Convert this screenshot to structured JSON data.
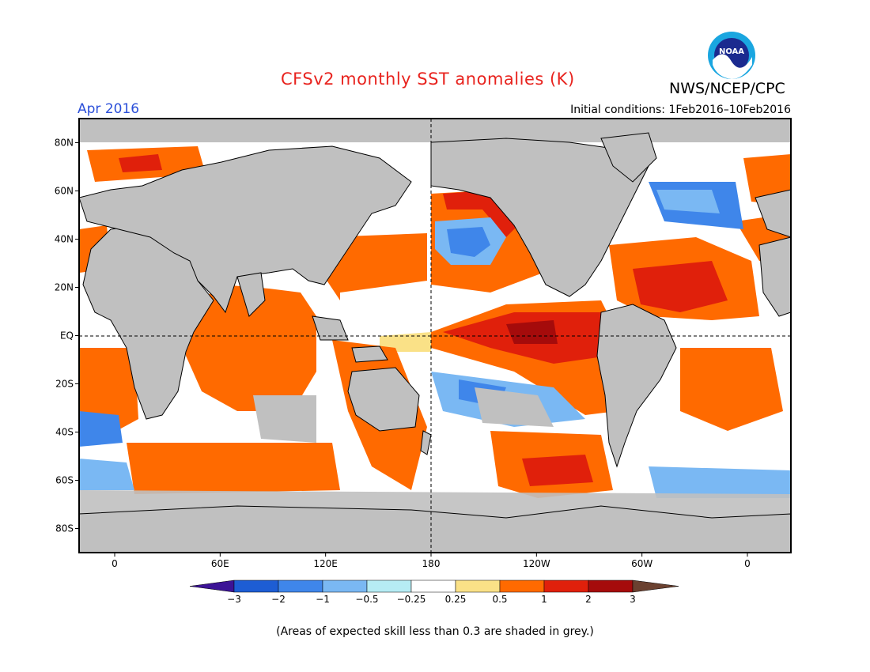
{
  "header": {
    "title": "CFSv2 monthly SST anomalies (K)",
    "org": "NWS/NCEP/CPC",
    "logo_text": "NOAA",
    "month": "Apr 2016",
    "initial_conditions": "Initial conditions: 1Feb2016–10Feb2016"
  },
  "map": {
    "lat_labels": [
      "80N",
      "60N",
      "40N",
      "20N",
      "EQ",
      "20S",
      "40S",
      "60S",
      "80S"
    ],
    "lon_labels": [
      "0",
      "60E",
      "120E",
      "180",
      "120W",
      "60W",
      "0"
    ],
    "land_color": "#c0c0c0",
    "skill_mask_color": "#c0c0c0"
  },
  "legend": {
    "tick_labels": [
      "−3",
      "−2",
      "−1",
      "−0.5",
      "−0.25",
      "0.25",
      "0.5",
      "1",
      "2",
      "3"
    ],
    "colors": [
      "#3c1396",
      "#1d5dd4",
      "#3f86ea",
      "#7ab8f3",
      "#b6ecf4",
      "#ffffff",
      "#fae187",
      "#ff6a00",
      "#e0200b",
      "#a50b0b",
      "#6b4130"
    ]
  },
  "footnote": "(Areas of expected skill less than 0.3 are shaded in grey.)"
}
